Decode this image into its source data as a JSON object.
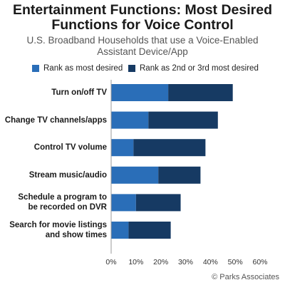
{
  "chart_data": {
    "type": "bar",
    "orientation": "horizontal",
    "stacked": true,
    "title": "Entertainment Functions: Most Desired Functions for Voice Control",
    "subtitle": "U.S. Broadband Households that use a Voice-Enabled Assistant Device/App",
    "categories": [
      "Turn on/off TV",
      "Change TV channels/apps",
      "Control TV volume",
      "Stream music/audio",
      "Schedule a program to be recorded on DVR",
      "Search for movie listings and show times"
    ],
    "series": [
      {
        "name": "Rank as most desired",
        "color": "#2a6eb8",
        "values": [
          23,
          15,
          9,
          19,
          10,
          7
        ]
      },
      {
        "name": "Rank as 2nd or 3rd most desired",
        "color": "#163a63",
        "values": [
          26,
          28,
          29,
          17,
          18,
          17
        ]
      }
    ],
    "xlim": [
      0,
      60
    ],
    "xticks": [
      "0%",
      "10%",
      "20%",
      "30%",
      "40%",
      "50%",
      "60%"
    ],
    "legend": "top",
    "grid": false,
    "source": "© Parks Associates"
  }
}
